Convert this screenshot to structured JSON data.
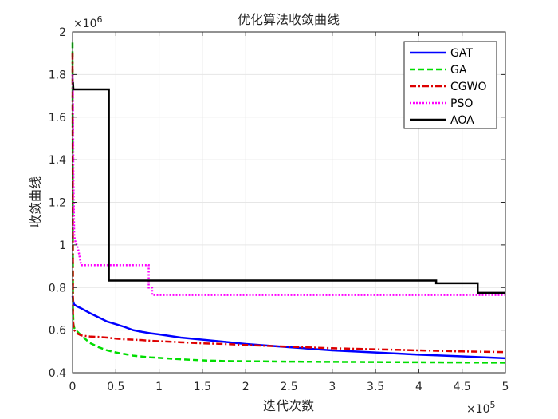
{
  "chart_data": {
    "type": "line",
    "title": "优化算法收敛曲线",
    "xlabel": "迭代次数",
    "ylabel": "收敛曲线",
    "x_multiplier_label": "×10",
    "x_multiplier_exp": "5",
    "y_multiplier_label": "×10",
    "y_multiplier_exp": "6",
    "xlim": [
      0,
      500000
    ],
    "ylim": [
      400000,
      2000000
    ],
    "xticks": [
      0,
      50000,
      100000,
      150000,
      200000,
      250000,
      300000,
      350000,
      400000,
      450000,
      500000
    ],
    "xtick_labels": [
      "0",
      "0.5",
      "1",
      "1.5",
      "2",
      "2.5",
      "3",
      "3.5",
      "4",
      "4.5",
      "5"
    ],
    "yticks": [
      400000,
      600000,
      800000,
      1000000,
      1200000,
      1400000,
      1600000,
      1800000,
      2000000
    ],
    "ytick_labels": [
      "0.4",
      "0.6",
      "0.8",
      "1",
      "1.2",
      "1.4",
      "1.6",
      "1.8",
      "2"
    ],
    "grid": true,
    "legend_position": "top-right",
    "series": [
      {
        "name": "GAT",
        "color": "#0000ff",
        "dash": "solid",
        "x": [
          0,
          500,
          1000,
          2000,
          5000,
          10000,
          20000,
          30000,
          40000,
          50000,
          60000,
          70000,
          80000,
          90000,
          100000,
          125000,
          150000,
          175000,
          200000,
          250000,
          300000,
          350000,
          400000,
          450000,
          500000
        ],
        "y": [
          760000,
          745000,
          730000,
          720000,
          712000,
          702000,
          680000,
          660000,
          640000,
          628000,
          615000,
          600000,
          592000,
          585000,
          580000,
          565000,
          555000,
          545000,
          535000,
          520000,
          505000,
          495000,
          485000,
          477000,
          468000
        ]
      },
      {
        "name": "GA",
        "color": "#00dd00",
        "dash": "dashed",
        "x": [
          0,
          500,
          1000,
          2000,
          5000,
          10000,
          20000,
          30000,
          40000,
          50000,
          60000,
          70000,
          80000,
          90000,
          100000,
          125000,
          150000,
          175000,
          200000,
          250000,
          300000,
          350000,
          400000,
          450000,
          500000
        ],
        "y": [
          1950000,
          700000,
          630000,
          610000,
          595000,
          575000,
          540000,
          520000,
          505000,
          495000,
          488000,
          480000,
          476000,
          472000,
          470000,
          463000,
          458000,
          455000,
          454000,
          452000,
          451000,
          450000,
          449000,
          448000,
          447000
        ]
      },
      {
        "name": "CGWO",
        "color": "#dd0000",
        "dash": "dashdot",
        "x": [
          0,
          500,
          1000,
          2000,
          5000,
          10000,
          20000,
          30000,
          40000,
          50000,
          60000,
          70000,
          80000,
          90000,
          100000,
          125000,
          150000,
          175000,
          200000,
          250000,
          300000,
          350000,
          400000,
          450000,
          500000
        ],
        "y": [
          1900000,
          680000,
          620000,
          600000,
          585000,
          575000,
          570000,
          568000,
          565000,
          560000,
          557000,
          555000,
          553000,
          550000,
          548000,
          543000,
          538000,
          535000,
          530000,
          522000,
          515000,
          510000,
          505000,
          500000,
          497000
        ]
      },
      {
        "name": "PSO",
        "color": "#ff00ff",
        "dash": "dotted",
        "x": [
          0,
          500,
          1000,
          2000,
          3000,
          5000,
          7000,
          10000,
          88000,
          88000,
          92000,
          92000,
          500000
        ],
        "y": [
          1800000,
          1700000,
          1300000,
          1040000,
          1020000,
          1000000,
          970000,
          905000,
          905000,
          800000,
          800000,
          765000,
          765000
        ]
      },
      {
        "name": "AOA",
        "color": "#000000",
        "dash": "solid",
        "x": [
          0,
          500,
          1000,
          1000,
          42000,
          42000,
          420000,
          420000,
          468000,
          468000,
          500000
        ],
        "y": [
          1760000,
          1760000,
          1730000,
          1730000,
          1730000,
          833000,
          833000,
          820000,
          820000,
          775000,
          775000
        ]
      }
    ]
  }
}
